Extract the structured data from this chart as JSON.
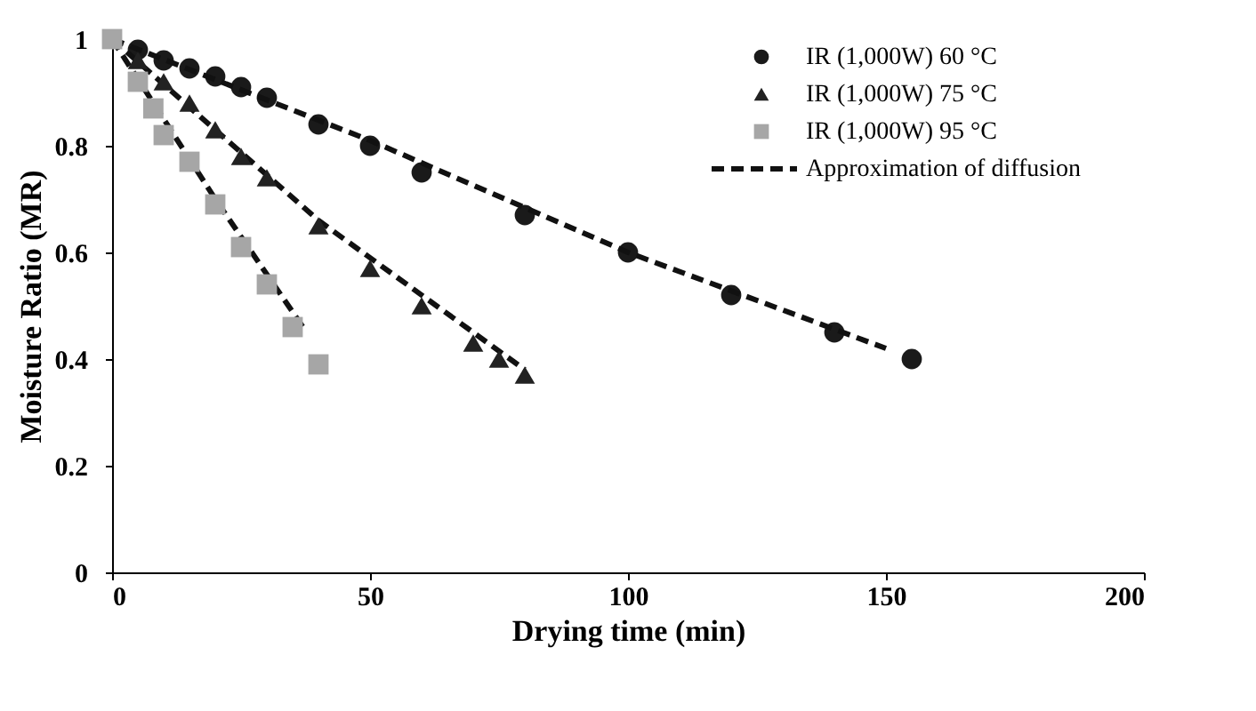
{
  "chart_data": {
    "type": "scatter",
    "xlabel": "Drying time (min)",
    "ylabel": "Moisture Ratio (MR)",
    "xlim": [
      0,
      200
    ],
    "xticks": [
      0,
      50,
      100,
      150,
      200
    ],
    "ylim": [
      0,
      1
    ],
    "yticks": [
      0,
      0.2,
      0.4,
      0.6,
      0.8,
      1
    ],
    "grid": false,
    "legend": "top right",
    "series": [
      {
        "name": "IR (1,000W) 60 °C",
        "marker": "circle",
        "color": "#1a1a1a",
        "x": [
          5,
          10,
          15,
          20,
          25,
          30,
          40,
          50,
          60,
          80,
          100,
          120,
          140,
          155
        ],
        "values": [
          0.98,
          0.96,
          0.945,
          0.93,
          0.91,
          0.89,
          0.84,
          0.8,
          0.75,
          0.67,
          0.6,
          0.52,
          0.45,
          0.4
        ]
      },
      {
        "name": "IR (1,000W) 75 °C",
        "marker": "triangle",
        "color": "#222222",
        "x": [
          5,
          10,
          15,
          20,
          25,
          30,
          40,
          50,
          60,
          70,
          75,
          80
        ],
        "values": [
          0.96,
          0.92,
          0.88,
          0.83,
          0.78,
          0.74,
          0.65,
          0.57,
          0.5,
          0.43,
          0.4,
          0.37
        ]
      },
      {
        "name": "IR (1,000W) 95 °C",
        "marker": "square",
        "color": "#a6a6a6",
        "x": [
          0,
          5,
          8,
          10,
          15,
          20,
          25,
          30,
          35,
          40
        ],
        "values": [
          1.0,
          0.92,
          0.87,
          0.82,
          0.77,
          0.69,
          0.61,
          0.54,
          0.46,
          0.39
        ]
      },
      {
        "name": "Approximation of diffusion",
        "type": "line",
        "line_style": "dashed",
        "marker": "none",
        "color": "#111111",
        "x": [
          0,
          50,
          100,
          150
        ],
        "values": [
          1.0,
          0.81,
          0.6,
          0.42
        ]
      },
      {
        "type": "line",
        "line_style": "dashed",
        "marker": "none",
        "color": "#111111",
        "x": [
          0,
          40,
          80
        ],
        "values": [
          1.0,
          0.66,
          0.38
        ]
      },
      {
        "type": "line",
        "line_style": "dashed",
        "marker": "none",
        "color": "#111111",
        "x": [
          0,
          20,
          37
        ],
        "values": [
          1.0,
          0.7,
          0.46
        ]
      }
    ]
  }
}
